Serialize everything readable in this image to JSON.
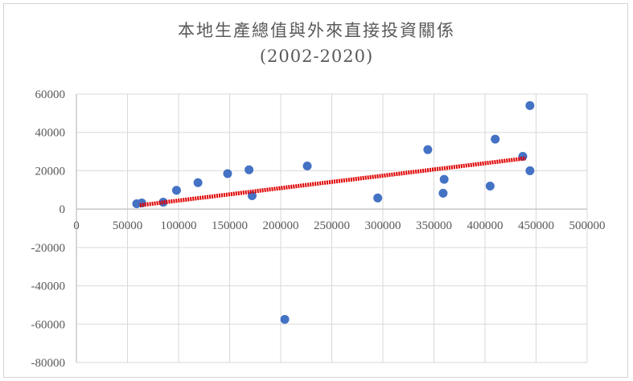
{
  "chart_data": {
    "type": "scatter",
    "title": "本地生產總值與外來直接投資關係",
    "subtitle": "(2002-2020)",
    "xlabel": "",
    "ylabel": "",
    "xlim": [
      0,
      500000
    ],
    "ylim": [
      -80000,
      60000
    ],
    "x_ticks": [
      0,
      50000,
      100000,
      150000,
      200000,
      250000,
      300000,
      350000,
      400000,
      450000,
      500000
    ],
    "y_ticks": [
      60000,
      40000,
      20000,
      0,
      -20000,
      -40000,
      -60000,
      -80000
    ],
    "x_tick_labels": [
      "0",
      "50000",
      "100000",
      "150000",
      "200000",
      "250000",
      "300000",
      "350000",
      "400000",
      "450000",
      "500000"
    ],
    "y_tick_labels": [
      "60000",
      "40000",
      "20000",
      "0",
      "-20000",
      "-40000",
      "-60000",
      "-80000"
    ],
    "grid": true,
    "legend": "none",
    "points": [
      {
        "x": 59000,
        "y": 2800
      },
      {
        "x": 64000,
        "y": 3200
      },
      {
        "x": 85000,
        "y": 3600
      },
      {
        "x": 98000,
        "y": 9800
      },
      {
        "x": 119000,
        "y": 13800
      },
      {
        "x": 148000,
        "y": 18500
      },
      {
        "x": 169000,
        "y": 20500
      },
      {
        "x": 172000,
        "y": 7000
      },
      {
        "x": 204000,
        "y": -57500
      },
      {
        "x": 226000,
        "y": 22500
      },
      {
        "x": 295000,
        "y": 5800
      },
      {
        "x": 344000,
        "y": 31000
      },
      {
        "x": 359000,
        "y": 8300
      },
      {
        "x": 360000,
        "y": 15500
      },
      {
        "x": 405000,
        "y": 12000
      },
      {
        "x": 410000,
        "y": 36500
      },
      {
        "x": 437000,
        "y": 27500
      },
      {
        "x": 444000,
        "y": 20000
      },
      {
        "x": 444000,
        "y": 54000
      }
    ],
    "trendline": {
      "x0": 62000,
      "y0": 2000,
      "x1": 440000,
      "y1": 26500
    },
    "colors": {
      "points": "#4472c4",
      "trendline": "#e00000",
      "grid": "#d9d9d9",
      "axis": "#bfbfbf",
      "text": "#595959"
    }
  }
}
